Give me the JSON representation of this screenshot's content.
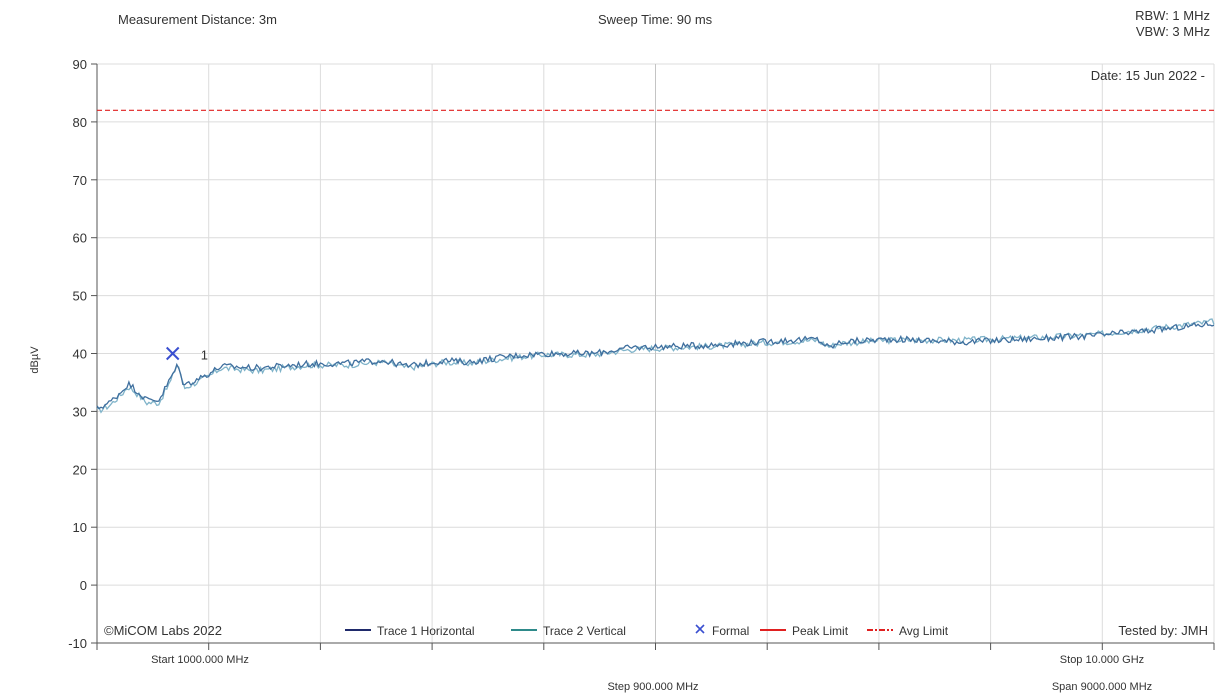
{
  "header": {
    "measurement_distance": "Measurement Distance: 3m",
    "sweep_time": "Sweep Time: 90 ms",
    "rbw": "RBW: 1 MHz",
    "vbw": "VBW: 3 MHz"
  },
  "chart_data": {
    "type": "line",
    "ylabel": "dBµV",
    "ylim": [
      -10,
      90
    ],
    "yticks": [
      90,
      80,
      70,
      60,
      50,
      40,
      30,
      20,
      10,
      0,
      -10
    ],
    "xlim_mhz": [
      1000,
      10000
    ],
    "grid": true,
    "date": "Date: 15 Jun 2022 -",
    "copyright": "©MiCOM Labs 2022",
    "tested_by": "Tested by: JMH",
    "x_start_label": "Start 1000.000 MHz",
    "x_stop_label": "Stop 10.000 GHz",
    "x_step_label": "Step 900.000 MHz",
    "x_span_label": "Span 9000.000 MHz",
    "peak_limit": 82,
    "marker": {
      "label": "1",
      "x_mhz": 1610,
      "y": 40
    },
    "legend": [
      {
        "label": "Trace 1 Horizontal",
        "color": "#1f2a6b",
        "style": "solid"
      },
      {
        "label": "Trace 2 Vertical",
        "color": "#2e8a8a",
        "style": "solid"
      },
      {
        "label": "Formal",
        "color": "#3a4fd0",
        "style": "x"
      },
      {
        "label": "Peak Limit",
        "color": "#e02020",
        "style": "solid"
      },
      {
        "label": "Avg Limit",
        "color": "#e02020",
        "style": "dashdot"
      }
    ],
    "series": [
      {
        "name": "Trace 1 Horizontal",
        "color": "#3f6f9e",
        "x": [
          1000,
          1100,
          1200,
          1250,
          1300,
          1400,
          1500,
          1600,
          1650,
          1700,
          1800,
          1900,
          2000,
          2300,
          2700,
          3000,
          3300,
          3500,
          3800,
          4000,
          4300,
          4600,
          5000,
          5300,
          5600,
          6000,
          6500,
          6800,
          6900,
          7000,
          7400,
          8000,
          8500,
          9000,
          9500,
          10000
        ],
        "values": [
          30.5,
          31.5,
          33.5,
          34.8,
          34,
          32,
          32,
          36,
          38,
          34.5,
          35.5,
          36.5,
          37.8,
          37.5,
          38.2,
          38.3,
          38.8,
          37.8,
          38.8,
          38.5,
          39.5,
          40,
          40,
          41,
          41.2,
          41.5,
          42.2,
          42.5,
          41,
          42,
          42.5,
          42,
          42.5,
          43,
          44,
          45.2
        ]
      },
      {
        "name": "Trace 2 Vertical",
        "color": "#7fb3c9",
        "x": [
          1000,
          1100,
          1200,
          1250,
          1300,
          1400,
          1500,
          1600,
          1650,
          1700,
          1800,
          1900,
          2000,
          2300,
          2700,
          3000,
          3300,
          3500,
          3800,
          4000,
          4300,
          4600,
          5000,
          5300,
          5600,
          6000,
          6500,
          6800,
          6900,
          7000,
          7400,
          8000,
          8500,
          9000,
          9500,
          10000
        ],
        "values": [
          30,
          31,
          33,
          34.3,
          33.5,
          31.5,
          31.5,
          35.5,
          38.5,
          34,
          35,
          36,
          37.5,
          37,
          38,
          38,
          38.5,
          37.5,
          38.5,
          38.3,
          39.2,
          39.8,
          39.8,
          40.7,
          41,
          41.3,
          42,
          42.3,
          41.2,
          41.8,
          42.3,
          42.3,
          42.7,
          43.2,
          44.3,
          45.5
        ]
      }
    ]
  }
}
